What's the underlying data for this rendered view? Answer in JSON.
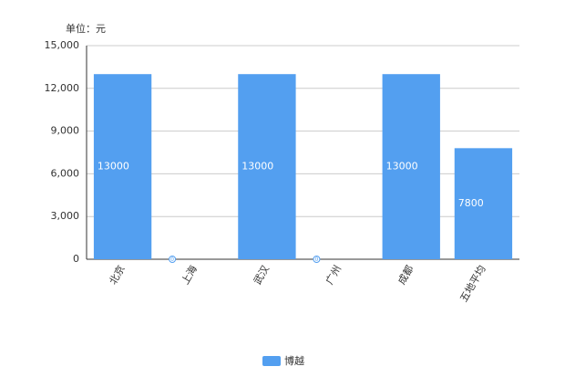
{
  "chart_data": {
    "type": "bar",
    "y_label": "单位：元",
    "categories": [
      "北京",
      "上海",
      "武汉",
      "广州",
      "成都",
      "五地平均"
    ],
    "series": [
      {
        "name": "博越",
        "color": "#539ff0",
        "values": [
          13000,
          0,
          13000,
          0,
          13000,
          7800
        ]
      }
    ],
    "ylim": [
      0,
      15000
    ],
    "yticks": [
      0,
      {
        "value": 3000,
        "label": "3,000"
      },
      {
        "value": 6000,
        "label": "6,000"
      },
      {
        "value": 9000,
        "label": "9,000"
      },
      {
        "value": 12000,
        "label": "12,000"
      },
      {
        "value": 15000,
        "label": "15,000"
      }
    ],
    "grid": true,
    "legend": "bottom"
  }
}
